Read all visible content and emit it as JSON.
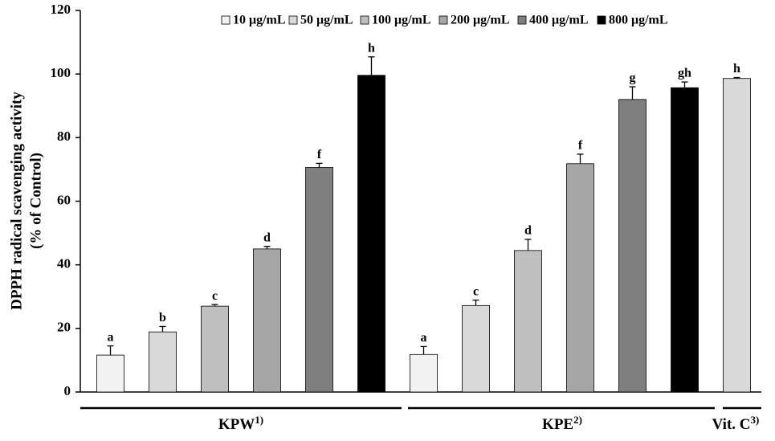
{
  "chart_data": {
    "type": "bar",
    "y_label": [
      "DPPH radical scavenging activity",
      "(% of Control)"
    ],
    "ylim": [
      0,
      120
    ],
    "yticks": [
      0,
      20,
      40,
      60,
      80,
      100,
      120
    ],
    "series": [
      {
        "name": "10 μg/mL",
        "color": "#f2f2f2"
      },
      {
        "name": "50 μg/mL",
        "color": "#d9d9d9"
      },
      {
        "name": "100 μg/mL",
        "color": "#bfbfbf"
      },
      {
        "name": "200 μg/mL",
        "color": "#a6a6a6"
      },
      {
        "name": "400 μg/mL",
        "color": "#7f7f7f"
      },
      {
        "name": "800 μg/mL",
        "color": "#000000"
      }
    ],
    "groups": [
      {
        "name": "KPW",
        "note": "1)",
        "values": [
          11.6,
          18.9,
          27,
          45,
          70.6,
          99.6
        ],
        "errors": [
          2.9,
          1.7,
          0.5,
          0.8,
          1.3,
          5.8
        ],
        "letters": [
          "a",
          "b",
          "c",
          "d",
          "f",
          "h"
        ]
      },
      {
        "name": "KPE",
        "note": "2)",
        "values": [
          11.8,
          27.2,
          44.5,
          71.8,
          92,
          95.7
        ],
        "errors": [
          2.5,
          1.7,
          3.5,
          3,
          4,
          1.8
        ],
        "letters": [
          "a",
          "c",
          "d",
          "f",
          "g",
          "gh"
        ]
      },
      {
        "name": "Vit. C",
        "note": "3)",
        "values": [
          98.6
        ],
        "errors": [
          0.3
        ],
        "letters": [
          "h"
        ],
        "color": "#d9d9d9"
      }
    ]
  }
}
